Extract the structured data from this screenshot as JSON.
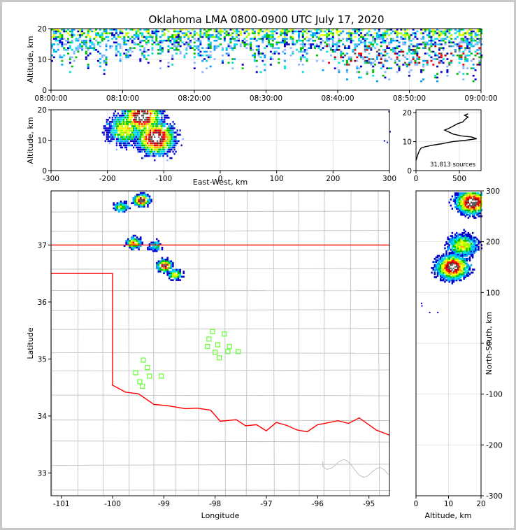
{
  "chart_data": [
    {
      "type": "heatmap",
      "panel": "altitude-vs-time",
      "title": "Oklahoma LMA 0800-0900 UTC July 17, 2020",
      "xlabel": "",
      "ylabel": "Altitude, km",
      "x_tick_labels": [
        "08:00:00",
        "08:10:00",
        "08:20:00",
        "08:30:00",
        "08:40:00",
        "08:50:00",
        "09:00:00"
      ],
      "xlim": [
        "08:00:00",
        "09:00:00"
      ],
      "ylim": [
        0,
        20
      ],
      "y_ticks": [
        0,
        10,
        20
      ],
      "grid": true,
      "density_band_km": [
        5,
        20
      ]
    },
    {
      "type": "heatmap",
      "panel": "altitude-vs-east-west",
      "xlabel": "East-West, km",
      "ylabel": "Altitude, km",
      "xlim": [
        -300,
        300
      ],
      "x_ticks": [
        -300,
        -200,
        -100,
        0,
        100,
        200,
        300
      ],
      "ylim": [
        0,
        20
      ],
      "y_ticks": [
        0,
        10,
        20
      ],
      "grid": true,
      "clusters": [
        {
          "x": -140,
          "y": 18,
          "intensity": 1.0
        },
        {
          "x": -115,
          "y": 11,
          "intensity": 1.0
        },
        {
          "x": -170,
          "y": 14,
          "intensity": 0.6
        }
      ]
    },
    {
      "type": "line",
      "panel": "altitude-histogram",
      "annotation": "31,813 sources",
      "xlim": [
        0,
        750
      ],
      "x_ticks": [
        0,
        500
      ],
      "ylim": [
        0,
        21
      ],
      "y_ticks": [
        0,
        10,
        20
      ],
      "grid": true,
      "points": [
        [
          0,
          3.5
        ],
        [
          20,
          5.5
        ],
        [
          40,
          7
        ],
        [
          60,
          7.8
        ],
        [
          100,
          8.2
        ],
        [
          200,
          8.8
        ],
        [
          300,
          9.3
        ],
        [
          420,
          10
        ],
        [
          580,
          10.5
        ],
        [
          700,
          11
        ],
        [
          640,
          11.6
        ],
        [
          520,
          12
        ],
        [
          430,
          12.6
        ],
        [
          380,
          13.3
        ],
        [
          330,
          14
        ],
        [
          380,
          14.6
        ],
        [
          430,
          15.4
        ],
        [
          480,
          16.2
        ],
        [
          540,
          16.8
        ],
        [
          560,
          17.5
        ],
        [
          600,
          18.5
        ],
        [
          560,
          19.1
        ],
        [
          600,
          19.6
        ]
      ]
    },
    {
      "type": "heatmap",
      "panel": "plan-view-map",
      "xlabel": "Longitude",
      "ylabel": "Latitude",
      "xlim": [
        -101.2,
        -94.6
      ],
      "x_ticks": [
        -101,
        -100,
        -99,
        -98,
        -97,
        -96,
        -95
      ],
      "ylim": [
        32.6,
        37.95
      ],
      "y_ticks": [
        33,
        34,
        35,
        36,
        37
      ],
      "colors": {
        "state_border": "#ff0000",
        "county_lines": "#c0c0c0",
        "stations": "#66ff33"
      },
      "stations": [
        [
          -98.05,
          35.48
        ],
        [
          -97.82,
          35.44
        ],
        [
          -98.12,
          35.35
        ],
        [
          -97.95,
          35.25
        ],
        [
          -98.15,
          35.22
        ],
        [
          -97.72,
          35.22
        ],
        [
          -98.0,
          35.12
        ],
        [
          -97.75,
          35.13
        ],
        [
          -97.55,
          35.13
        ],
        [
          -97.92,
          35.02
        ],
        [
          -99.4,
          34.98
        ],
        [
          -99.32,
          34.85
        ],
        [
          -99.55,
          34.76
        ],
        [
          -99.28,
          34.7
        ],
        [
          -99.05,
          34.7
        ],
        [
          -99.47,
          34.6
        ],
        [
          -99.42,
          34.52
        ]
      ],
      "clusters": [
        {
          "lon": -99.85,
          "lat": 37.68,
          "intensity": 0.5
        },
        {
          "lon": -99.45,
          "lat": 37.8,
          "intensity": 1.0
        },
        {
          "lon": -99.6,
          "lat": 37.05,
          "intensity": 0.7
        },
        {
          "lon": -99.0,
          "lat": 36.65,
          "intensity": 0.9
        },
        {
          "lon": -98.8,
          "lat": 36.5,
          "intensity": 0.6
        },
        {
          "lon": -99.18,
          "lat": 37.0,
          "intensity": 0.4
        }
      ]
    },
    {
      "type": "heatmap",
      "panel": "north-south-vs-altitude",
      "xlabel": "Altitude, km",
      "ylabel": "North-South, km",
      "xlim": [
        0,
        20
      ],
      "x_ticks": [
        0,
        10,
        20
      ],
      "ylim": [
        -300,
        300
      ],
      "y_ticks": [
        -300,
        -200,
        -100,
        0,
        100,
        200,
        300
      ],
      "grid": true,
      "clusters": [
        {
          "alt": 17,
          "ns": 280,
          "intensity": 1.0
        },
        {
          "alt": 14,
          "ns": 195,
          "intensity": 0.6
        },
        {
          "alt": 11,
          "ns": 152,
          "intensity": 1.0
        }
      ]
    }
  ]
}
